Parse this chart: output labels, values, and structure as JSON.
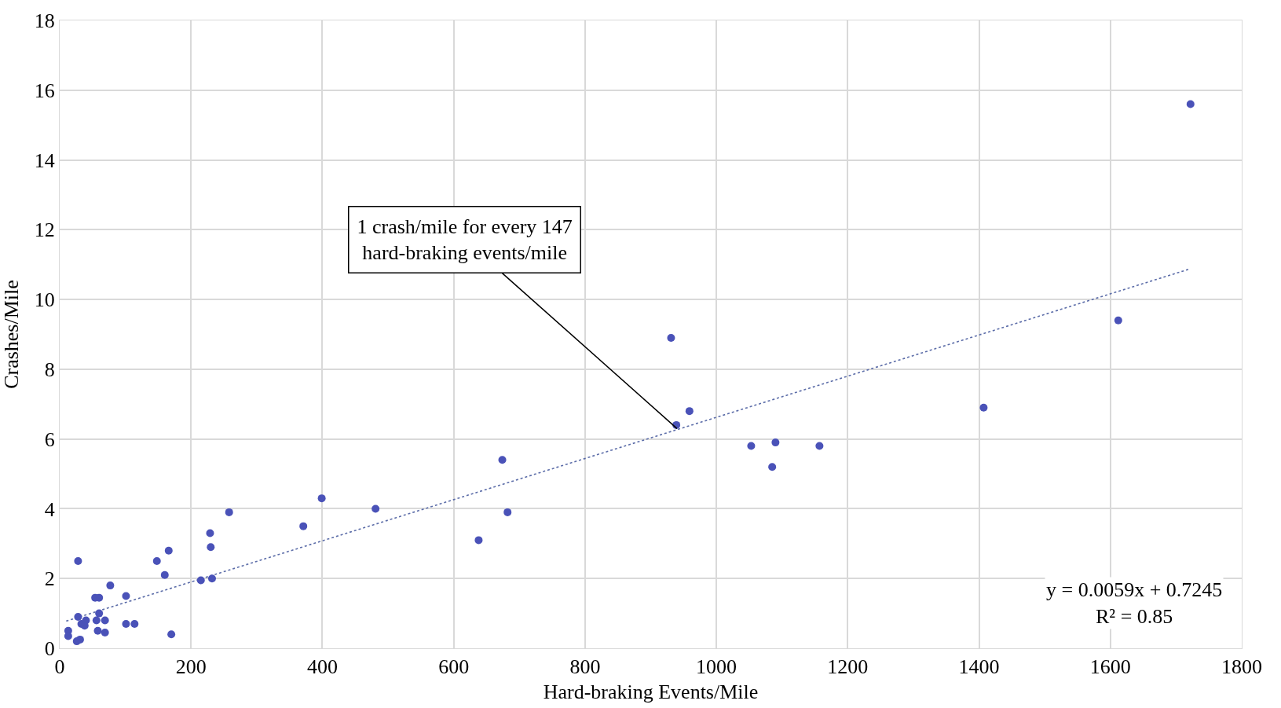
{
  "chart_data": {
    "type": "scatter",
    "xlabel": "Hard-braking Events/Mile",
    "ylabel": "Crashes/Mile",
    "xlim": [
      0,
      1800
    ],
    "xticks": [
      0,
      200,
      400,
      600,
      800,
      1000,
      1200,
      1400,
      1600,
      1800
    ],
    "ylim": [
      0,
      18
    ],
    "yticks": [
      0,
      2,
      4,
      6,
      8,
      10,
      12,
      14,
      16,
      18
    ],
    "grid": true,
    "marker": "circle",
    "series": [
      {
        "color": "#4a52b8",
        "x": [
          1722,
          1612,
          1407,
          1157,
          1090,
          1085,
          1053,
          959,
          939,
          931,
          674,
          682,
          638,
          481,
          399,
          371,
          258,
          232,
          230,
          229,
          215,
          166,
          160,
          148,
          170,
          101,
          114,
          101,
          77,
          60,
          60,
          54,
          56,
          69,
          69,
          58,
          28,
          28,
          33,
          40,
          38,
          13,
          13,
          31,
          26
        ],
        "values": [
          15.6,
          9.4,
          6.9,
          5.8,
          5.9,
          5.2,
          5.8,
          6.8,
          6.4,
          8.9,
          5.4,
          3.9,
          3.1,
          4.0,
          4.3,
          3.5,
          3.9,
          2.0,
          2.9,
          3.3,
          1.95,
          2.8,
          2.1,
          2.5,
          0.4,
          1.5,
          0.7,
          0.7,
          1.8,
          1.0,
          1.45,
          1.45,
          0.8,
          0.8,
          0.45,
          0.5,
          2.5,
          0.9,
          0.7,
          0.8,
          0.65,
          0.5,
          0.35,
          0.25,
          0.2
        ]
      },
      {
        "type": "line",
        "color": "#5b6ca8",
        "line_style": "dotted",
        "marker": "none",
        "x": [
          10,
          1720
        ],
        "values": [
          0.78,
          10.87
        ]
      }
    ],
    "annotations": [
      {
        "text": "1 crash/mile for every 147\nhard-braking events/mile",
        "x": 940,
        "y": 6.3
      },
      "y = 0.0059x + 0.7245\nR² = 0.85"
    ]
  }
}
